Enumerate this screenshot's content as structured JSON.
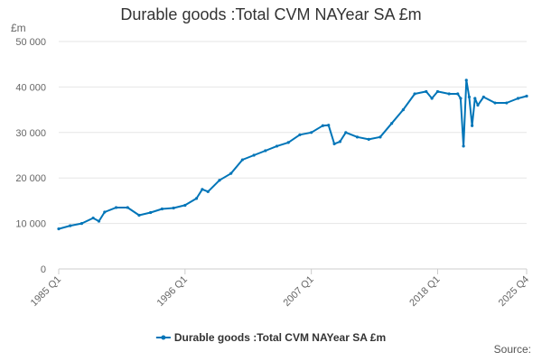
{
  "chart_data": {
    "type": "line",
    "title": "Durable goods :Total CVM NAYear SA £m",
    "y_unit": "£m",
    "source": "Source:",
    "ylim": [
      0,
      50000
    ],
    "y_ticks": [
      0,
      10000,
      20000,
      30000,
      40000,
      50000
    ],
    "y_tick_labels": [
      "0",
      "10 000",
      "20 000",
      "30 000",
      "40 000",
      "50 000"
    ],
    "x_tick_labels": [
      "1985 Q1",
      "1996 Q1",
      "2007 Q1",
      "2018 Q1",
      "2025 Q4"
    ],
    "x_range": [
      "1985 Q1",
      "2025 Q4"
    ],
    "grid": true,
    "legend": "bottom",
    "color": "#0075b8",
    "series": [
      {
        "name": "Durable goods :Total CVM NAYear SA £m",
        "x": [
          "1985 Q1",
          "1986 Q1",
          "1987 Q1",
          "1988 Q1",
          "1988 Q3",
          "1989 Q1",
          "1990 Q1",
          "1991 Q1",
          "1992 Q1",
          "1993 Q1",
          "1994 Q1",
          "1995 Q1",
          "1996 Q1",
          "1997 Q1",
          "1997 Q3",
          "1998 Q1",
          "1999 Q1",
          "2000 Q1",
          "2001 Q1",
          "2002 Q1",
          "2003 Q1",
          "2004 Q1",
          "2005 Q1",
          "2006 Q1",
          "2007 Q1",
          "2008 Q1",
          "2008 Q3",
          "2009 Q1",
          "2009 Q3",
          "2010 Q1",
          "2011 Q1",
          "2012 Q1",
          "2013 Q1",
          "2014 Q1",
          "2015 Q1",
          "2016 Q1",
          "2017 Q1",
          "2017 Q3",
          "2018 Q1",
          "2019 Q1",
          "2019 Q4",
          "2020 Q1",
          "2020 Q2",
          "2020 Q3",
          "2020 Q4",
          "2021 Q1",
          "2021 Q2",
          "2021 Q3",
          "2022 Q1",
          "2023 Q1",
          "2024 Q1",
          "2025 Q1",
          "2025 Q4"
        ],
        "values": [
          8800,
          9500,
          10000,
          11200,
          10500,
          12500,
          13500,
          13500,
          11800,
          12400,
          13200,
          13400,
          14000,
          15500,
          17500,
          17000,
          19500,
          21000,
          24000,
          25000,
          26000,
          27000,
          27800,
          29500,
          30000,
          31500,
          31600,
          27500,
          28000,
          30000,
          29000,
          28500,
          29000,
          32000,
          35000,
          38500,
          39000,
          37500,
          39000,
          38500,
          38500,
          37500,
          27000,
          41500,
          37800,
          31500,
          37500,
          36000,
          37800,
          36500,
          36500,
          37500,
          38000
        ]
      }
    ]
  }
}
